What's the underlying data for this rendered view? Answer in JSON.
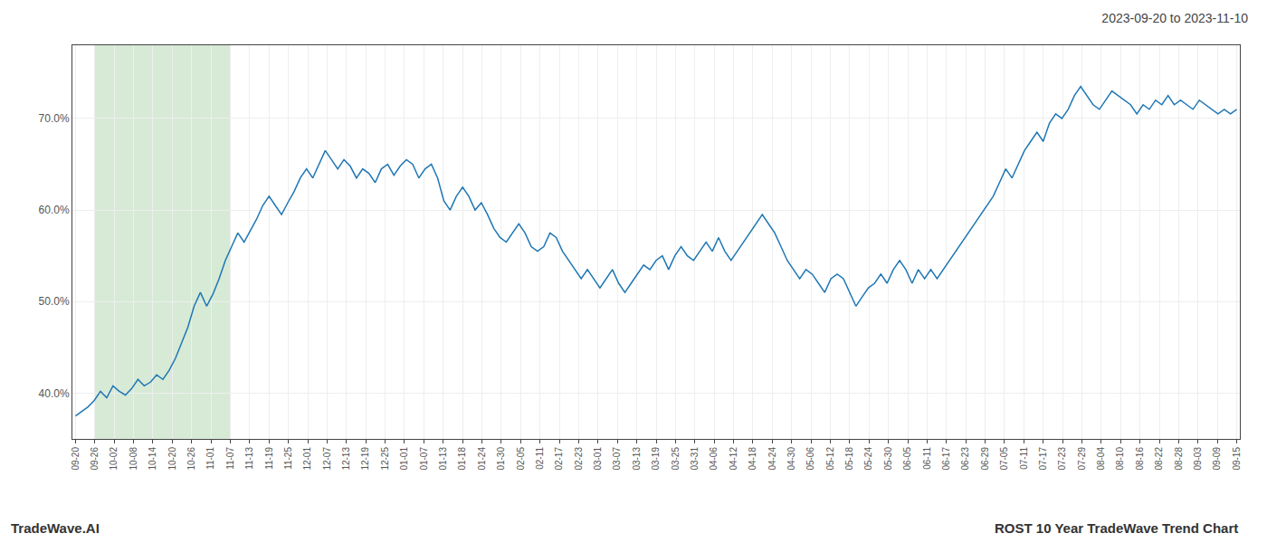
{
  "chart_data": {
    "type": "line",
    "title": "2023-09-20 to 2023-11-10",
    "annotations": [
      "TradeWave.AI",
      "ROST 10 Year TradeWave Trend Chart"
    ],
    "color": "#1f77b4",
    "grid": true,
    "highlight": {
      "from": "09-26",
      "to": "11-07",
      "color": "#d6ead6"
    },
    "xlim": [
      -0.5,
      186.5
    ],
    "xticks": [
      {
        "value": 0,
        "label": "09-20"
      },
      {
        "value": 3.1,
        "label": "09-26"
      },
      {
        "value": 6.2,
        "label": "10-02"
      },
      {
        "value": 9.3,
        "label": "10-08"
      },
      {
        "value": 12.4,
        "label": "10-14"
      },
      {
        "value": 15.5,
        "label": "10-20"
      },
      {
        "value": 18.6,
        "label": "10-26"
      },
      {
        "value": 21.7,
        "label": "11-01"
      },
      {
        "value": 24.8,
        "label": "11-07"
      },
      {
        "value": 27.9,
        "label": "11-13"
      },
      {
        "value": 31,
        "label": "11-19"
      },
      {
        "value": 34.1,
        "label": "11-25"
      },
      {
        "value": 37.2,
        "label": "12-01"
      },
      {
        "value": 40.3,
        "label": "12-07"
      },
      {
        "value": 43.4,
        "label": "12-13"
      },
      {
        "value": 46.5,
        "label": "12-19"
      },
      {
        "value": 49.6,
        "label": "12-25"
      },
      {
        "value": 52.7,
        "label": "01-01"
      },
      {
        "value": 55.8,
        "label": "01-07"
      },
      {
        "value": 58.9,
        "label": "01-13"
      },
      {
        "value": 62,
        "label": "01-18"
      },
      {
        "value": 65.1,
        "label": "01-24"
      },
      {
        "value": 68.2,
        "label": "01-30"
      },
      {
        "value": 71.3,
        "label": "02-05"
      },
      {
        "value": 74.4,
        "label": "02-11"
      },
      {
        "value": 77.5,
        "label": "02-17"
      },
      {
        "value": 80.6,
        "label": "02-23"
      },
      {
        "value": 83.7,
        "label": "03-01"
      },
      {
        "value": 86.8,
        "label": "03-07"
      },
      {
        "value": 89.9,
        "label": "03-13"
      },
      {
        "value": 93,
        "label": "03-19"
      },
      {
        "value": 96.1,
        "label": "03-25"
      },
      {
        "value": 99.2,
        "label": "03-31"
      },
      {
        "value": 102.3,
        "label": "04-06"
      },
      {
        "value": 105.4,
        "label": "04-12"
      },
      {
        "value": 108.5,
        "label": "04-18"
      },
      {
        "value": 111.6,
        "label": "04-24"
      },
      {
        "value": 114.7,
        "label": "04-30"
      },
      {
        "value": 117.8,
        "label": "05-06"
      },
      {
        "value": 120.9,
        "label": "05-12"
      },
      {
        "value": 124,
        "label": "05-18"
      },
      {
        "value": 127.1,
        "label": "05-24"
      },
      {
        "value": 130.2,
        "label": "05-30"
      },
      {
        "value": 133.3,
        "label": "06-05"
      },
      {
        "value": 136.4,
        "label": "06-11"
      },
      {
        "value": 139.5,
        "label": "06-17"
      },
      {
        "value": 142.6,
        "label": "06-23"
      },
      {
        "value": 145.7,
        "label": "06-29"
      },
      {
        "value": 148.8,
        "label": "07-05"
      },
      {
        "value": 151.9,
        "label": "07-11"
      },
      {
        "value": 155,
        "label": "07-17"
      },
      {
        "value": 158.1,
        "label": "07-23"
      },
      {
        "value": 161.2,
        "label": "07-29"
      },
      {
        "value": 164.3,
        "label": "08-04"
      },
      {
        "value": 167.4,
        "label": "08-10"
      },
      {
        "value": 170.5,
        "label": "08-16"
      },
      {
        "value": 173.6,
        "label": "08-22"
      },
      {
        "value": 176.7,
        "label": "08-28"
      },
      {
        "value": 179.8,
        "label": "09-03"
      },
      {
        "value": 182.9,
        "label": "09-09"
      },
      {
        "value": 186,
        "label": "09-15"
      }
    ],
    "ylim": [
      35,
      78
    ],
    "yticks": [
      {
        "value": 40.0,
        "label": "40.0%"
      },
      {
        "value": 50.0,
        "label": "50.0%"
      },
      {
        "value": 60.0,
        "label": "60.0%"
      },
      {
        "value": 70.0,
        "label": "70.0%"
      }
    ],
    "values": [
      37.5,
      38.0,
      38.5,
      39.2,
      40.2,
      39.5,
      40.8,
      40.2,
      39.8,
      40.5,
      41.5,
      40.8,
      41.2,
      42.0,
      41.5,
      42.5,
      43.8,
      45.5,
      47.2,
      49.5,
      51.0,
      49.5,
      50.8,
      52.5,
      54.5,
      56.0,
      57.5,
      56.5,
      57.8,
      59.0,
      60.5,
      61.5,
      60.5,
      59.5,
      60.8,
      62.0,
      63.5,
      64.5,
      63.5,
      65.0,
      66.5,
      65.5,
      64.5,
      65.5,
      64.8,
      63.5,
      64.5,
      64.0,
      63.0,
      64.5,
      65.0,
      63.8,
      64.8,
      65.5,
      65.0,
      63.5,
      64.5,
      65.0,
      63.5,
      61.0,
      60.0,
      61.5,
      62.5,
      61.5,
      60.0,
      60.8,
      59.5,
      58.0,
      57.0,
      56.5,
      57.5,
      58.5,
      57.5,
      56.0,
      55.5,
      56.0,
      57.5,
      57.0,
      55.5,
      54.5,
      53.5,
      52.5,
      53.5,
      52.5,
      51.5,
      52.5,
      53.5,
      52.0,
      51.0,
      52.0,
      53.0,
      54.0,
      53.5,
      54.5,
      55.0,
      53.5,
      55.0,
      56.0,
      55.0,
      54.5,
      55.5,
      56.5,
      55.5,
      57.0,
      55.5,
      54.5,
      55.5,
      56.5,
      57.5,
      58.5,
      59.5,
      58.5,
      57.5,
      56.0,
      54.5,
      53.5,
      52.5,
      53.5,
      53.0,
      52.0,
      51.0,
      52.5,
      53.0,
      52.5,
      51.0,
      49.5,
      50.5,
      51.5,
      52.0,
      53.0,
      52.0,
      53.5,
      54.5,
      53.5,
      52.0,
      53.5,
      52.5,
      53.5,
      52.5,
      53.5,
      54.5,
      55.5,
      56.5,
      57.5,
      58.5,
      59.5,
      60.5,
      61.5,
      63.0,
      64.5,
      63.5,
      65.0,
      66.5,
      67.5,
      68.5,
      67.5,
      69.5,
      70.5,
      70.0,
      71.0,
      72.5,
      73.5,
      72.5,
      71.5,
      71.0,
      72.0,
      73.0,
      72.5,
      72.0,
      71.5,
      70.5,
      71.5,
      71.0,
      72.0,
      71.5,
      72.5,
      71.5,
      72.0,
      71.5,
      71.0,
      72.0,
      71.5,
      71.0,
      70.5,
      71.0,
      70.5,
      71.0
    ]
  }
}
